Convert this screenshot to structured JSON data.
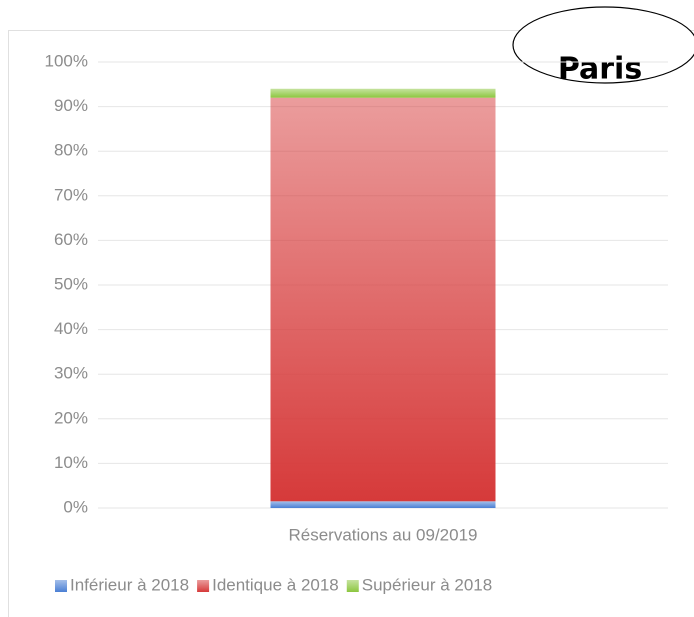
{
  "chart_data": {
    "type": "stacked_bar",
    "annotation": "Paris",
    "categories": [
      "Réservations au 09/2019"
    ],
    "series": [
      {
        "name": "Inférieur à 2018",
        "color": "#4a7fd4",
        "values": [
          1.5
        ]
      },
      {
        "name": "Identique à 2018",
        "color": "#d63a3a",
        "values": [
          90.5
        ]
      },
      {
        "name": "Supérieur à 2018",
        "color": "#8cc63f",
        "values": [
          2
        ]
      }
    ],
    "ylim": [
      0,
      100
    ],
    "yticks": [
      {
        "value": 0,
        "label": "0%"
      },
      {
        "value": 10,
        "label": "10%"
      },
      {
        "value": 20,
        "label": "20%"
      },
      {
        "value": 30,
        "label": "30%"
      },
      {
        "value": 40,
        "label": "40%"
      },
      {
        "value": 50,
        "label": "50%"
      },
      {
        "value": 60,
        "label": "60%"
      },
      {
        "value": 70,
        "label": "70%"
      },
      {
        "value": 80,
        "label": "80%"
      },
      {
        "value": 90,
        "label": "90%"
      },
      {
        "value": 100,
        "label": "100%"
      }
    ],
    "grid": true,
    "legend": "bottom"
  }
}
